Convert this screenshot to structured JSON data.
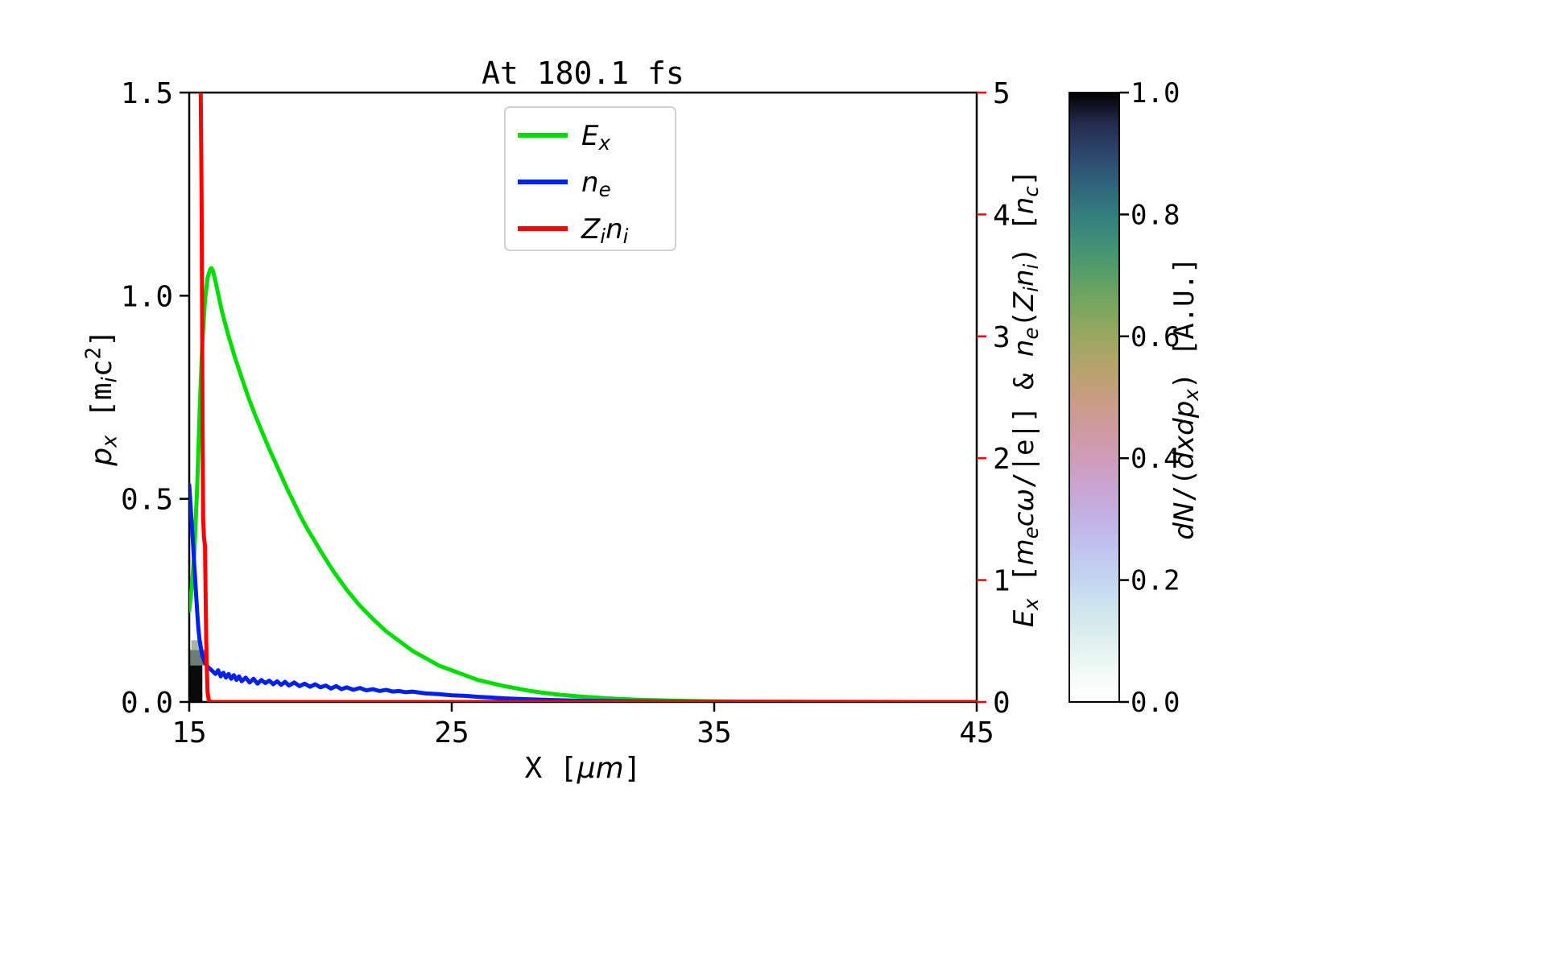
{
  "figure": {
    "background": "#ffffff"
  },
  "chart_data": {
    "type": "line",
    "title": "At 180.1 fs",
    "xlabel": "X [μm]",
    "xlim": [
      15,
      45
    ],
    "xticks": [
      15,
      25,
      35,
      45
    ],
    "xtick_labels": [
      "15",
      "25",
      "35",
      "45"
    ],
    "left_axis": {
      "label": "p_x [m_i c2]",
      "lim": [
        0,
        1.5
      ],
      "ticks": [
        0.0,
        0.5,
        1.0,
        1.5
      ],
      "tick_labels": [
        "0.0",
        "0.5",
        "1.0",
        "1.5"
      ],
      "color": "#000000"
    },
    "right_axis": {
      "label": "E_x [m_e cω/|e|] & n_e(Z_i n_i) [n_c]",
      "lim": [
        0,
        5
      ],
      "ticks": [
        0,
        1,
        2,
        3,
        4,
        5
      ],
      "tick_labels": [
        "0",
        "1",
        "2",
        "3",
        "4",
        "5"
      ],
      "color": "#ff0000"
    },
    "grid": false,
    "legend_position": "upper center",
    "series": [
      {
        "name": "E_x",
        "axis": "right",
        "color": "#00dd00",
        "x": [
          15.0,
          15.1,
          15.2,
          15.3,
          15.4,
          15.5,
          15.6,
          15.7,
          15.8,
          15.85,
          15.9,
          16.0,
          16.1,
          16.25,
          16.5,
          16.75,
          17.0,
          17.25,
          17.5,
          17.75,
          18.0,
          18.25,
          18.5,
          18.75,
          19.0,
          19.25,
          19.5,
          19.75,
          20.0,
          20.5,
          21.0,
          21.5,
          22.0,
          22.5,
          23.0,
          23.5,
          24.0,
          24.5,
          25.0,
          25.5,
          26.0,
          26.5,
          27.0,
          27.5,
          28.0,
          28.5,
          29.0,
          29.5,
          30.0,
          31.0,
          32.0,
          33.0,
          34.0,
          35.0,
          36.0,
          38.0,
          40.0,
          42.0,
          45.0
        ],
        "y": [
          0.75,
          0.95,
          1.25,
          1.75,
          2.4,
          2.95,
          3.3,
          3.48,
          3.55,
          3.56,
          3.54,
          3.45,
          3.35,
          3.2,
          3.0,
          2.82,
          2.66,
          2.5,
          2.36,
          2.23,
          2.1,
          1.98,
          1.86,
          1.74,
          1.63,
          1.52,
          1.42,
          1.33,
          1.24,
          1.07,
          0.92,
          0.79,
          0.68,
          0.58,
          0.5,
          0.42,
          0.36,
          0.3,
          0.26,
          0.22,
          0.18,
          0.155,
          0.13,
          0.11,
          0.09,
          0.075,
          0.062,
          0.052,
          0.043,
          0.029,
          0.019,
          0.013,
          0.008,
          0.005,
          0.003,
          0.0015,
          0.0008,
          0.0003,
          0.0
        ]
      },
      {
        "name": "n_e",
        "axis": "right",
        "color": "#0020ee",
        "x": [
          15.0,
          15.05,
          15.1,
          15.15,
          15.2,
          15.25,
          15.3,
          15.35,
          15.4,
          15.5,
          15.6,
          15.7,
          15.8,
          15.9,
          16.0,
          16.1,
          16.2,
          16.3,
          16.4,
          16.5,
          16.6,
          16.7,
          16.8,
          16.9,
          17.0,
          17.15,
          17.3,
          17.45,
          17.6,
          17.75,
          17.9,
          18.05,
          18.2,
          18.35,
          18.5,
          18.65,
          18.8,
          19.0,
          19.2,
          19.4,
          19.6,
          19.8,
          20.0,
          20.2,
          20.4,
          20.6,
          20.8,
          21.0,
          21.25,
          21.5,
          21.75,
          22.0,
          22.25,
          22.5,
          22.75,
          23.0,
          23.25,
          23.5,
          24.0,
          24.5,
          25.0,
          25.5,
          26.0,
          26.5,
          27.0,
          28.0,
          29.0,
          30.0,
          32.0,
          35.0,
          40.0,
          45.0
        ],
        "y": [
          1.78,
          1.62,
          1.45,
          1.28,
          1.1,
          0.92,
          0.75,
          0.6,
          0.5,
          0.38,
          0.32,
          0.29,
          0.27,
          0.25,
          0.23,
          0.26,
          0.21,
          0.24,
          0.2,
          0.23,
          0.19,
          0.22,
          0.18,
          0.21,
          0.17,
          0.2,
          0.16,
          0.19,
          0.15,
          0.18,
          0.155,
          0.175,
          0.145,
          0.17,
          0.14,
          0.165,
          0.135,
          0.16,
          0.13,
          0.15,
          0.125,
          0.145,
          0.12,
          0.135,
          0.11,
          0.13,
          0.105,
          0.12,
          0.1,
          0.115,
          0.095,
          0.105,
          0.09,
          0.1,
          0.085,
          0.09,
          0.08,
          0.085,
          0.07,
          0.065,
          0.055,
          0.05,
          0.042,
          0.036,
          0.03,
          0.022,
          0.015,
          0.01,
          0.005,
          0.002,
          0.0005,
          0.0
        ]
      },
      {
        "name": "Z_i n_i",
        "axis": "right",
        "color": "#ff0000",
        "x": [
          15.44,
          15.47,
          15.49,
          15.51,
          15.53,
          15.56,
          15.6,
          15.63,
          15.66,
          15.7,
          15.75,
          15.85,
          16.0,
          17.0,
          20.0,
          25.0,
          30.0,
          35.0,
          40.0,
          45.0
        ],
        "y": [
          5.0,
          4.2,
          3.2,
          2.2,
          1.5,
          1.35,
          1.28,
          0.8,
          0.35,
          0.08,
          0.01,
          0.0,
          0.0,
          0.0,
          0.0,
          0.0,
          0.0,
          0.0,
          0.0,
          0.0
        ]
      }
    ],
    "legend": {
      "entries": [
        {
          "label": "E_x",
          "color": "#00dd00",
          "parts": [
            {
              "t": "E",
              "f": "it"
            },
            {
              "t": "x",
              "f": "it",
              "pos": "sub"
            }
          ]
        },
        {
          "label": "n_e",
          "color": "#0020ee",
          "parts": [
            {
              "t": "n",
              "f": "it"
            },
            {
              "t": "e",
              "f": "it",
              "pos": "sub"
            }
          ]
        },
        {
          "label": "Z_i n_i",
          "color": "#ff0000",
          "parts": [
            {
              "t": "Z",
              "f": "it"
            },
            {
              "t": "i",
              "f": "it",
              "pos": "sub"
            },
            {
              "t": "n",
              "f": "it"
            },
            {
              "t": "i",
              "f": "it",
              "pos": "sub"
            }
          ]
        }
      ]
    },
    "heatmap": {
      "label": "dN/(dxdp_x) [A.U.]",
      "value_units": "A.U.",
      "cells": [
        {
          "x0": 15.03,
          "x1": 15.5,
          "p0": 0.0,
          "p1": 0.09,
          "c": "#0a0a0a"
        },
        {
          "x0": 15.03,
          "x1": 15.62,
          "p0": 0.09,
          "p1": 0.128,
          "c": "#6e7d74"
        },
        {
          "x0": 15.08,
          "x1": 15.5,
          "p0": 0.128,
          "p1": 0.152,
          "c": "#a8b5a0"
        }
      ]
    },
    "colorbar": {
      "label": "dN/(dxdp_x) [A.U.]",
      "lim": [
        0,
        1
      ],
      "ticks": [
        0.0,
        0.2,
        0.4,
        0.6,
        0.8,
        1.0
      ],
      "tick_labels": [
        "0.0",
        "0.2",
        "0.4",
        "0.6",
        "0.8",
        "1.0"
      ],
      "stops": [
        {
          "v": 0.0,
          "c": "#ffffff"
        },
        {
          "v": 0.05,
          "c": "#f2fbf7"
        },
        {
          "v": 0.1,
          "c": "#dff0ee"
        },
        {
          "v": 0.15,
          "c": "#cfe6ee"
        },
        {
          "v": 0.2,
          "c": "#c3d6f0"
        },
        {
          "v": 0.25,
          "c": "#c0c4ee"
        },
        {
          "v": 0.3,
          "c": "#c2b2e4"
        },
        {
          "v": 0.35,
          "c": "#c9a4d2"
        },
        {
          "v": 0.4,
          "c": "#cf9cba"
        },
        {
          "v": 0.45,
          "c": "#cf9a9e"
        },
        {
          "v": 0.5,
          "c": "#c79d82"
        },
        {
          "v": 0.55,
          "c": "#b5a36c"
        },
        {
          "v": 0.6,
          "c": "#9aa75f"
        },
        {
          "v": 0.65,
          "c": "#7aa65e"
        },
        {
          "v": 0.7,
          "c": "#5a9f68"
        },
        {
          "v": 0.75,
          "c": "#419176"
        },
        {
          "v": 0.8,
          "c": "#347d7e"
        },
        {
          "v": 0.85,
          "c": "#2f637b"
        },
        {
          "v": 0.9,
          "c": "#2c466b"
        },
        {
          "v": 0.95,
          "c": "#232a4e"
        },
        {
          "v": 1.0,
          "c": "#000000"
        }
      ]
    }
  },
  "rich": {
    "xlabel": [
      {
        "t": "X [",
        "f": "mono"
      },
      {
        "t": "μm",
        "f": "it"
      },
      {
        "t": "]",
        "f": "mono"
      }
    ],
    "ylabel_left": [
      {
        "t": "p",
        "f": "it"
      },
      {
        "t": "x",
        "f": "it",
        "pos": "sub"
      },
      {
        "t": " [",
        "f": "mono"
      },
      {
        "t": "m",
        "f": "mono"
      },
      {
        "t": "i",
        "f": "it",
        "pos": "sub"
      },
      {
        "t": "c",
        "f": "mono"
      },
      {
        "t": "2",
        "f": "mono",
        "pos": "sup"
      },
      {
        "t": "]",
        "f": "mono"
      }
    ],
    "ylabel_right": [
      {
        "t": "E",
        "f": "it"
      },
      {
        "t": "x",
        "f": "it",
        "pos": "sub"
      },
      {
        "t": " [",
        "f": "mono"
      },
      {
        "t": "m",
        "f": "it"
      },
      {
        "t": "e",
        "f": "it",
        "pos": "sub"
      },
      {
        "t": "c",
        "f": "it"
      },
      {
        "t": "ω",
        "f": "it"
      },
      {
        "t": "/|e|] & ",
        "f": "mono"
      },
      {
        "t": "n",
        "f": "it"
      },
      {
        "t": "e",
        "f": "it",
        "pos": "sub"
      },
      {
        "t": "(",
        "f": "mono"
      },
      {
        "t": "Z",
        "f": "it"
      },
      {
        "t": "i",
        "f": "it",
        "pos": "sub"
      },
      {
        "t": "n",
        "f": "it"
      },
      {
        "t": "i",
        "f": "it",
        "pos": "sub"
      },
      {
        "t": ")",
        "f": "mono"
      },
      {
        "t": " [",
        "f": "mono"
      },
      {
        "t": "n",
        "f": "it"
      },
      {
        "t": "c",
        "f": "it",
        "pos": "sub"
      },
      {
        "t": "]",
        "f": "mono"
      }
    ],
    "colorbar_label": [
      {
        "t": "d",
        "f": "it"
      },
      {
        "t": "N",
        "f": "it"
      },
      {
        "t": "/(",
        "f": "mono"
      },
      {
        "t": "d",
        "f": "it"
      },
      {
        "t": "x",
        "f": "it"
      },
      {
        "t": "d",
        "f": "it"
      },
      {
        "t": "p",
        "f": "it"
      },
      {
        "t": "x",
        "f": "it",
        "pos": "sub"
      },
      {
        "t": ") [A.U.]",
        "f": "mono"
      }
    ]
  }
}
